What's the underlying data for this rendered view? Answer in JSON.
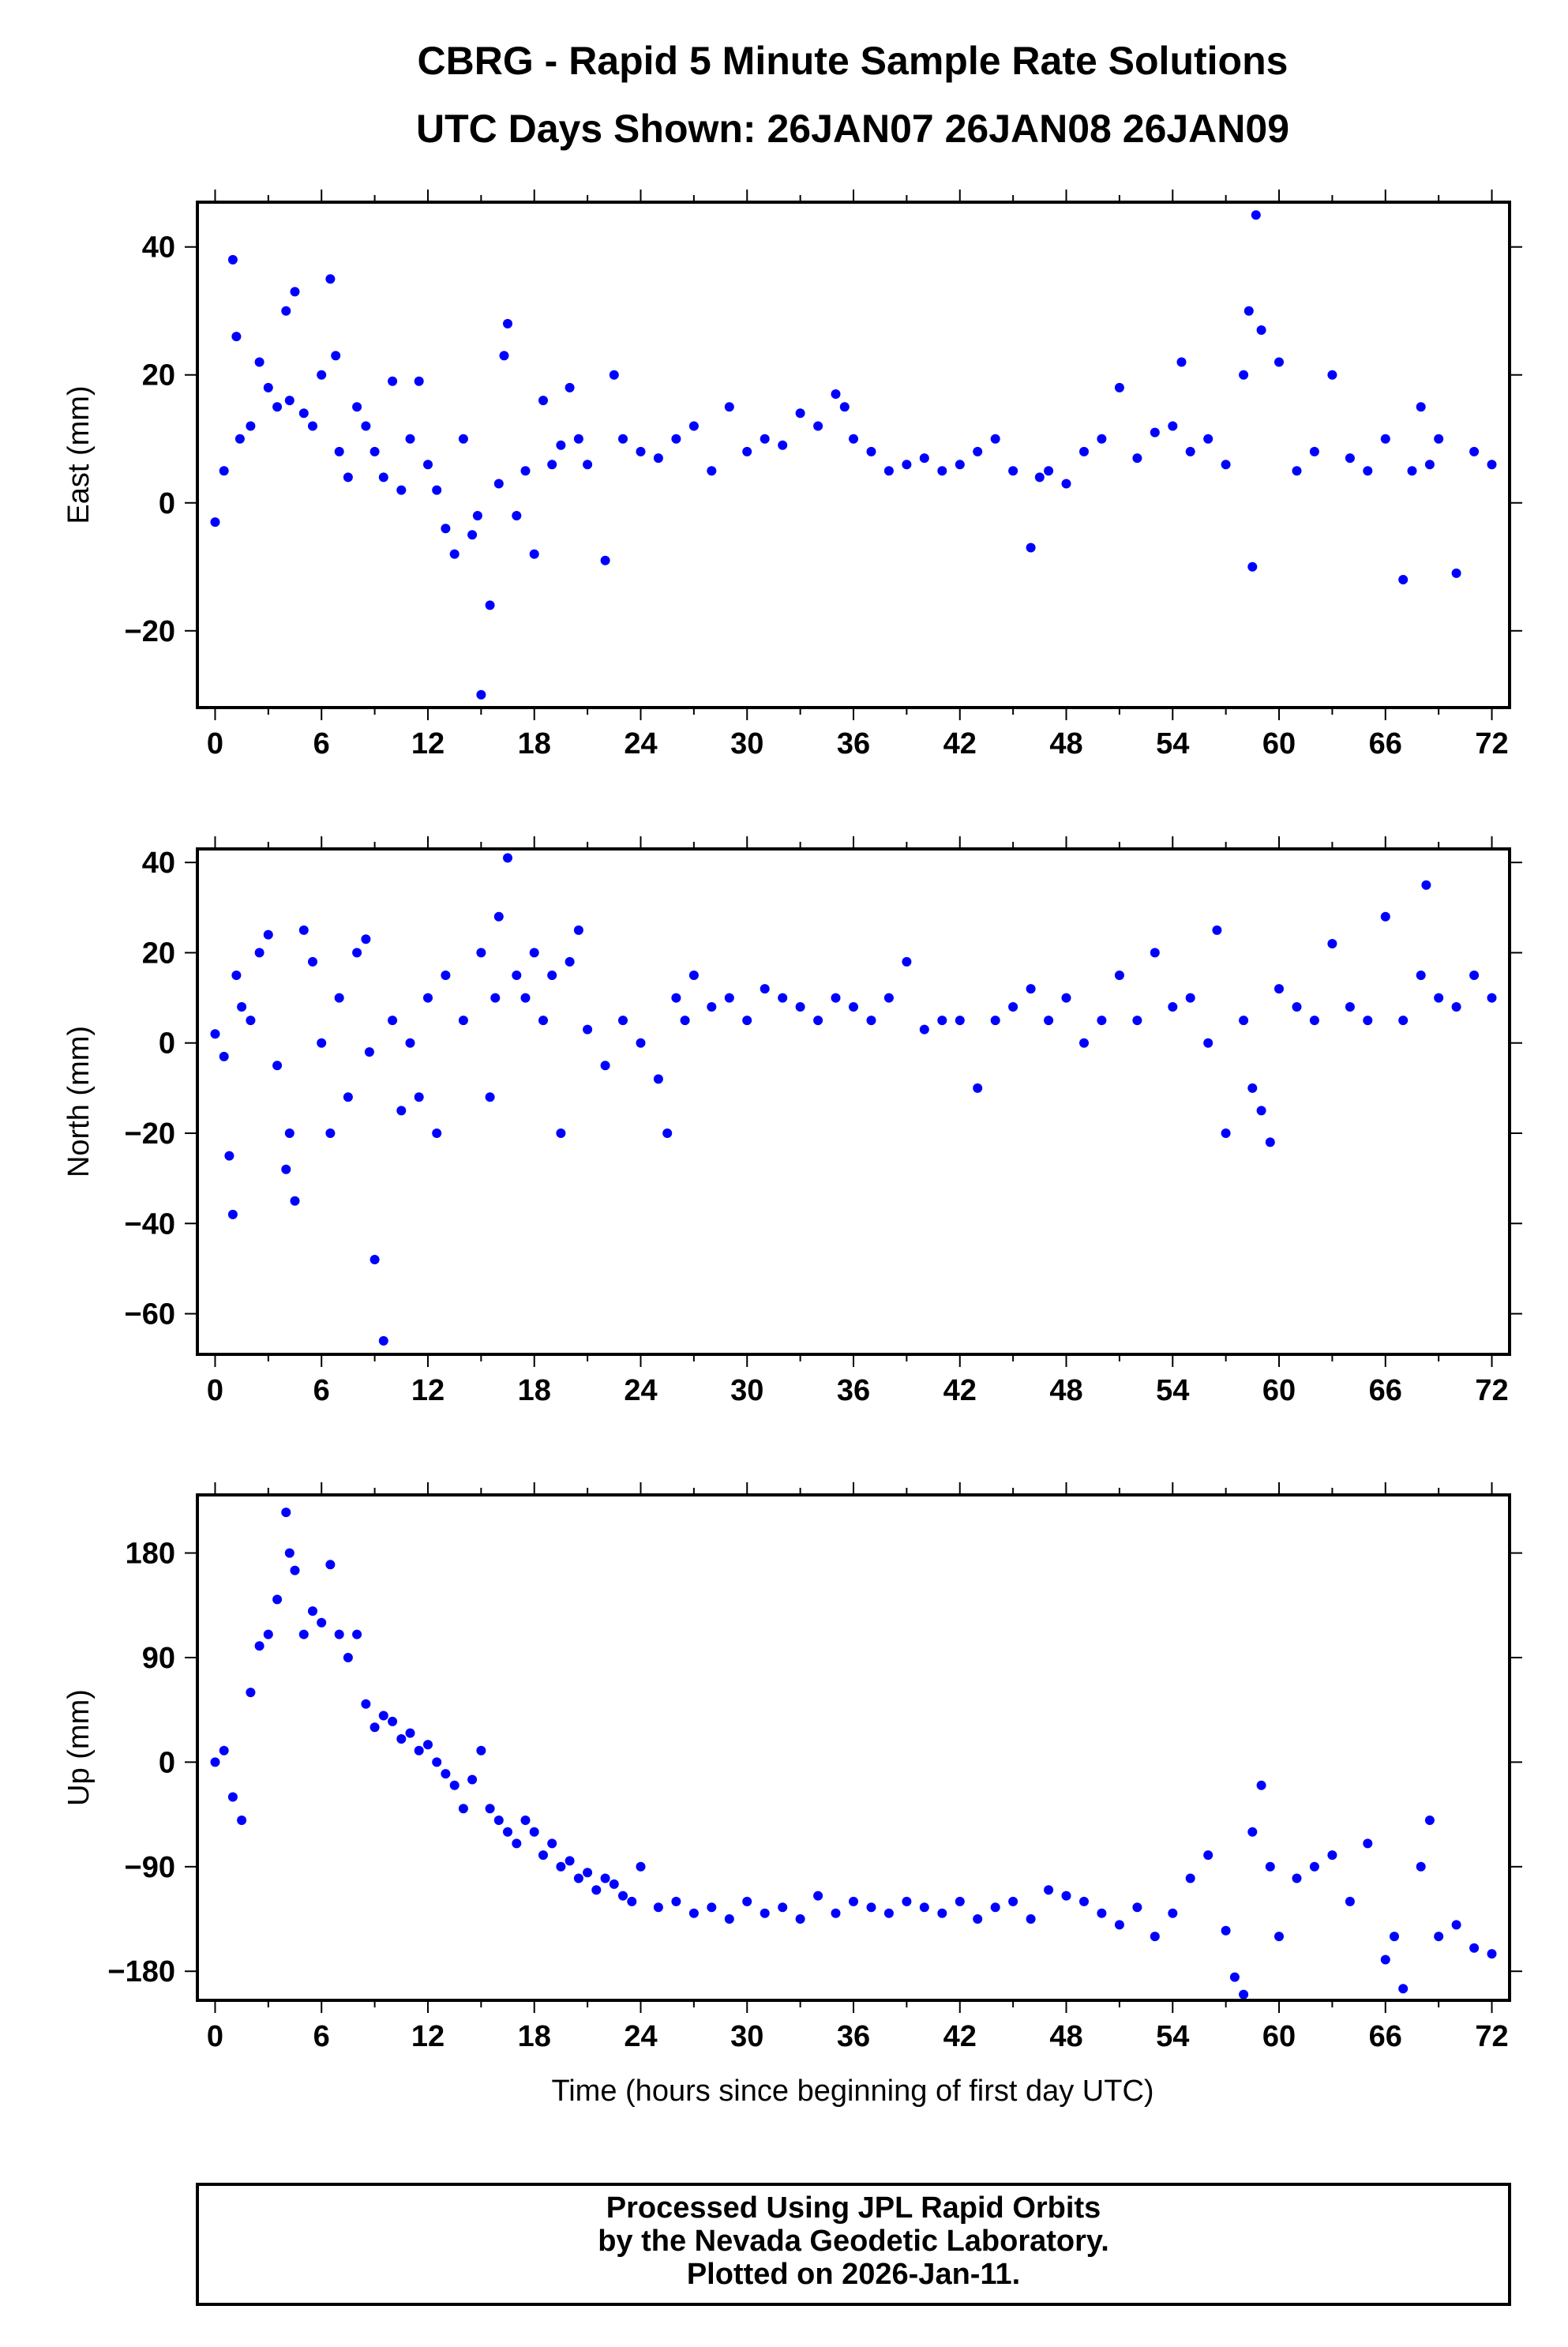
{
  "title": {
    "line1": "CBRG - Rapid 5 Minute Sample Rate Solutions",
    "line2": "UTC Days Shown:  26JAN07 26JAN08 26JAN09"
  },
  "xlabel": "Time (hours since beginning of first day UTC)",
  "footer": {
    "line1": "Processed Using JPL Rapid Orbits",
    "line2": "by the Nevada Geodetic Laboratory.",
    "line3": "Plotted on 2026-Jan-11."
  },
  "colors": {
    "points": "#0000ff",
    "frame": "#000000"
  },
  "chart_data": [
    {
      "type": "scatter",
      "ylabel": "East (mm)",
      "xlim": [
        -1,
        73
      ],
      "ylim": [
        -32,
        47
      ],
      "xticks": [
        0,
        6,
        12,
        18,
        24,
        30,
        36,
        42,
        48,
        54,
        60,
        66,
        72
      ],
      "yticks": [
        -20,
        0,
        20,
        40
      ],
      "series": [
        {
          "x": [
            0.0,
            0.5,
            1.0,
            1.2,
            1.4,
            2.0,
            2.5,
            3.0,
            3.5,
            4.0,
            4.2,
            4.5,
            5.0,
            5.5,
            6.0,
            6.5,
            6.8,
            7.0,
            7.5,
            8.0,
            8.5,
            9.0,
            9.5,
            10.0,
            10.5,
            11.0,
            11.5,
            12.0,
            12.5,
            13.0,
            13.5,
            14.0,
            14.5,
            14.8,
            15.0,
            15.5,
            16.0,
            16.3,
            16.5,
            17.0,
            17.5,
            18.0,
            18.5,
            19.0,
            19.5,
            20.0,
            20.5,
            21.0,
            22.0,
            22.5,
            23.0,
            24.0,
            25.0,
            26.0,
            27.0,
            28.0,
            29.0,
            30.0,
            31.0,
            32.0,
            33.0,
            34.0,
            35.0,
            35.5,
            36.0,
            37.0,
            38.0,
            39.0,
            40.0,
            41.0,
            42.0,
            43.0,
            44.0,
            45.0,
            46.0,
            46.5,
            47.0,
            48.0,
            49.0,
            50.0,
            51.0,
            52.0,
            53.0,
            54.0,
            54.5,
            55.0,
            56.0,
            57.0,
            58.0,
            58.3,
            58.5,
            58.7,
            59.0,
            60.0,
            61.0,
            62.0,
            63.0,
            64.0,
            65.0,
            66.0,
            67.0,
            67.5,
            68.0,
            68.5,
            69.0,
            70.0,
            71.0,
            72.0
          ],
          "y": [
            -3,
            5,
            38,
            26,
            10,
            12,
            22,
            18,
            15,
            30,
            16,
            33,
            14,
            12,
            20,
            35,
            23,
            8,
            4,
            15,
            12,
            8,
            4,
            19,
            2,
            10,
            19,
            6,
            2,
            -4,
            -8,
            10,
            -5,
            -2,
            -30,
            -16,
            3,
            23,
            28,
            -2,
            5,
            -8,
            16,
            6,
            9,
            18,
            10,
            6,
            -9,
            20,
            10,
            8,
            7,
            10,
            12,
            5,
            15,
            8,
            10,
            9,
            14,
            12,
            17,
            15,
            10,
            8,
            5,
            6,
            7,
            5,
            6,
            8,
            10,
            5,
            -7,
            4,
            5,
            3,
            8,
            10,
            18,
            7,
            11,
            12,
            22,
            8,
            10,
            6,
            20,
            30,
            -10,
            45,
            27,
            22,
            5,
            8,
            20,
            7,
            5,
            10,
            -12,
            5,
            15,
            6,
            10,
            -11,
            8,
            6
          ]
        }
      ]
    },
    {
      "type": "scatter",
      "ylabel": "North (mm)",
      "xlim": [
        -1,
        73
      ],
      "ylim": [
        -69,
        43
      ],
      "xticks": [
        0,
        6,
        12,
        18,
        24,
        30,
        36,
        42,
        48,
        54,
        60,
        66,
        72
      ],
      "yticks": [
        -60,
        -40,
        -20,
        0,
        20,
        40
      ],
      "series": [
        {
          "x": [
            0.0,
            0.5,
            0.8,
            1.0,
            1.2,
            1.5,
            2.0,
            2.5,
            3.0,
            3.5,
            4.0,
            4.2,
            4.5,
            5.0,
            5.5,
            6.0,
            6.5,
            7.0,
            7.5,
            8.0,
            8.5,
            8.7,
            9.0,
            9.5,
            10.0,
            10.5,
            11.0,
            11.5,
            12.0,
            12.5,
            13.0,
            14.0,
            15.0,
            15.5,
            15.8,
            16.0,
            16.5,
            17.0,
            17.5,
            18.0,
            18.5,
            19.0,
            19.5,
            20.0,
            20.5,
            21.0,
            22.0,
            23.0,
            24.0,
            25.0,
            25.5,
            26.0,
            26.5,
            27.0,
            28.0,
            29.0,
            30.0,
            31.0,
            32.0,
            33.0,
            34.0,
            35.0,
            36.0,
            37.0,
            38.0,
            39.0,
            40.0,
            41.0,
            42.0,
            43.0,
            44.0,
            45.0,
            46.0,
            47.0,
            48.0,
            49.0,
            50.0,
            51.0,
            52.0,
            53.0,
            54.0,
            55.0,
            56.0,
            56.5,
            57.0,
            58.0,
            58.5,
            59.0,
            59.5,
            60.0,
            61.0,
            62.0,
            63.0,
            64.0,
            65.0,
            66.0,
            67.0,
            68.0,
            68.3,
            69.0,
            70.0,
            71.0,
            72.0
          ],
          "y": [
            2,
            -3,
            -25,
            -38,
            15,
            8,
            5,
            20,
            24,
            -5,
            -28,
            -20,
            -35,
            25,
            18,
            0,
            -20,
            10,
            -12,
            20,
            23,
            -2,
            -48,
            -66,
            5,
            -15,
            0,
            -12,
            10,
            -20,
            15,
            5,
            20,
            -12,
            10,
            28,
            41,
            15,
            10,
            20,
            5,
            15,
            -20,
            18,
            25,
            3,
            -5,
            5,
            0,
            -8,
            -20,
            10,
            5,
            15,
            8,
            10,
            5,
            12,
            10,
            8,
            5,
            10,
            8,
            5,
            10,
            18,
            3,
            5,
            5,
            -10,
            5,
            8,
            12,
            5,
            10,
            0,
            5,
            15,
            5,
            20,
            8,
            10,
            0,
            25,
            -20,
            5,
            -10,
            -15,
            -22,
            12,
            8,
            5,
            22,
            8,
            5,
            28,
            5,
            15,
            35,
            10,
            8,
            15,
            10
          ]
        }
      ]
    },
    {
      "type": "scatter",
      "ylabel": "Up (mm)",
      "xlim": [
        -1,
        73
      ],
      "ylim": [
        -205,
        230
      ],
      "xticks": [
        0,
        6,
        12,
        18,
        24,
        30,
        36,
        42,
        48,
        54,
        60,
        66,
        72
      ],
      "yticks": [
        -180,
        -90,
        0,
        90,
        180
      ],
      "series": [
        {
          "x": [
            0.0,
            0.5,
            1.0,
            1.5,
            2.0,
            2.5,
            3.0,
            3.5,
            4.0,
            4.2,
            4.5,
            5.0,
            5.5,
            6.0,
            6.5,
            7.0,
            7.5,
            8.0,
            8.5,
            9.0,
            9.5,
            10.0,
            10.5,
            11.0,
            11.5,
            12.0,
            12.5,
            13.0,
            13.5,
            14.0,
            14.5,
            15.0,
            15.5,
            16.0,
            16.5,
            17.0,
            17.5,
            18.0,
            18.5,
            19.0,
            19.5,
            20.0,
            20.5,
            21.0,
            21.5,
            22.0,
            22.5,
            23.0,
            23.5,
            24.0,
            25.0,
            26.0,
            27.0,
            28.0,
            29.0,
            30.0,
            31.0,
            32.0,
            33.0,
            34.0,
            35.0,
            36.0,
            37.0,
            38.0,
            39.0,
            40.0,
            41.0,
            42.0,
            43.0,
            44.0,
            45.0,
            46.0,
            47.0,
            48.0,
            49.0,
            50.0,
            51.0,
            52.0,
            53.0,
            54.0,
            55.0,
            56.0,
            57.0,
            57.5,
            58.0,
            58.5,
            59.0,
            59.5,
            60.0,
            61.0,
            62.0,
            63.0,
            64.0,
            65.0,
            66.0,
            66.5,
            67.0,
            68.0,
            68.5,
            69.0,
            70.0,
            71.0,
            72.0
          ],
          "y": [
            0,
            10,
            -30,
            -50,
            60,
            100,
            110,
            140,
            215,
            180,
            165,
            110,
            130,
            120,
            170,
            110,
            90,
            110,
            50,
            30,
            40,
            35,
            20,
            25,
            10,
            15,
            0,
            -10,
            -20,
            -40,
            -15,
            10,
            -40,
            -50,
            -60,
            -70,
            -50,
            -60,
            -80,
            -70,
            -90,
            -85,
            -100,
            -95,
            -110,
            -100,
            -105,
            -115,
            -120,
            -90,
            -125,
            -120,
            -130,
            -125,
            -135,
            -120,
            -130,
            -125,
            -135,
            -115,
            -130,
            -120,
            -125,
            -130,
            -120,
            -125,
            -130,
            -120,
            -135,
            -125,
            -120,
            -135,
            -110,
            -115,
            -120,
            -130,
            -140,
            -125,
            -150,
            -130,
            -100,
            -80,
            -145,
            -185,
            -200,
            -60,
            -20,
            -90,
            -150,
            -100,
            -90,
            -80,
            -120,
            -70,
            -170,
            -150,
            -195,
            -90,
            -50,
            -150,
            -140,
            -160,
            -165
          ]
        }
      ]
    }
  ]
}
